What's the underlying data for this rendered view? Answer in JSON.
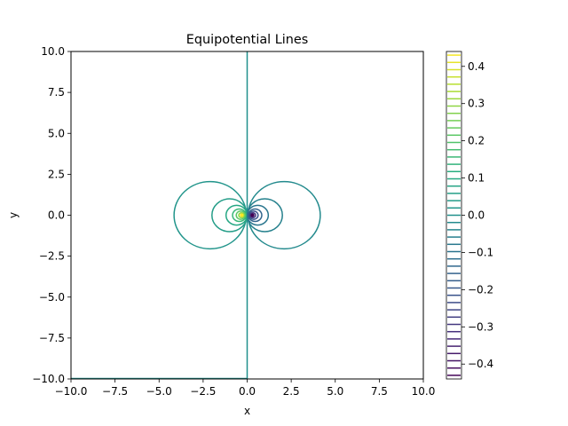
{
  "chart_data": {
    "type": "contour",
    "title": "Equipotential Lines",
    "xlabel": "x",
    "ylabel": "y",
    "xlim": [
      -10,
      10
    ],
    "ylim": [
      -10,
      10
    ],
    "x_ticks": [
      "−10.0",
      "−7.5",
      "−5.0",
      "−2.5",
      "0.0",
      "2.5",
      "5.0",
      "7.5",
      "10.0"
    ],
    "y_ticks": [
      "10.0",
      "7.5",
      "5.0",
      "2.5",
      "0.0",
      "−2.5",
      "−5.0",
      "−7.5",
      "−10.0"
    ],
    "colormap": "viridis",
    "colorbar": {
      "range": [
        -0.44,
        0.44
      ],
      "ticks": [
        "0.4",
        "0.3",
        "0.2",
        "0.1",
        "0.0",
        "−0.1",
        "−0.2",
        "−0.3",
        "−0.4"
      ],
      "tick_values": [
        0.4,
        0.3,
        0.2,
        0.1,
        0.0,
        -0.1,
        -0.2,
        -0.3,
        -0.4
      ]
    },
    "sources": [
      {
        "x": -0.3,
        "y": 0.0,
        "sign": "positive"
      },
      {
        "x": 0.3,
        "y": 0.0,
        "sign": "negative"
      }
    ],
    "contours": [
      {
        "level": 0.0,
        "shape": "vertical-line",
        "x": 0
      },
      {
        "level": 0.0,
        "shape": "bottom-edge",
        "y": -10
      },
      {
        "level": 0.02,
        "shape": "circle",
        "cx": -2.1,
        "cy": 0,
        "r": 2.05
      },
      {
        "level": -0.02,
        "shape": "circle",
        "cx": 2.1,
        "cy": 0,
        "r": 2.05
      },
      {
        "level": 0.05,
        "shape": "circle",
        "cx": -1.0,
        "cy": 0,
        "r": 1.0
      },
      {
        "level": -0.05,
        "shape": "circle",
        "cx": 1.0,
        "cy": 0,
        "r": 1.0
      },
      {
        "level": 0.09,
        "shape": "circle",
        "cx": -0.6,
        "cy": 0,
        "r": 0.6
      },
      {
        "level": -0.09,
        "shape": "circle",
        "cx": 0.6,
        "cy": 0,
        "r": 0.6
      },
      {
        "level": 0.15,
        "shape": "circle",
        "cx": -0.45,
        "cy": 0,
        "r": 0.38
      },
      {
        "level": -0.15,
        "shape": "circle",
        "cx": 0.45,
        "cy": 0,
        "r": 0.38
      },
      {
        "level": 0.22,
        "shape": "circle",
        "cx": -0.37,
        "cy": 0,
        "r": 0.25
      },
      {
        "level": -0.22,
        "shape": "circle",
        "cx": 0.37,
        "cy": 0,
        "r": 0.25
      },
      {
        "level": 0.3,
        "shape": "circle",
        "cx": -0.33,
        "cy": 0,
        "r": 0.15
      },
      {
        "level": -0.3,
        "shape": "circle",
        "cx": 0.33,
        "cy": 0,
        "r": 0.15
      },
      {
        "level": 0.38,
        "shape": "circle",
        "cx": -0.31,
        "cy": 0,
        "r": 0.07
      },
      {
        "level": -0.38,
        "shape": "circle",
        "cx": 0.31,
        "cy": 0,
        "r": 0.07
      }
    ]
  }
}
